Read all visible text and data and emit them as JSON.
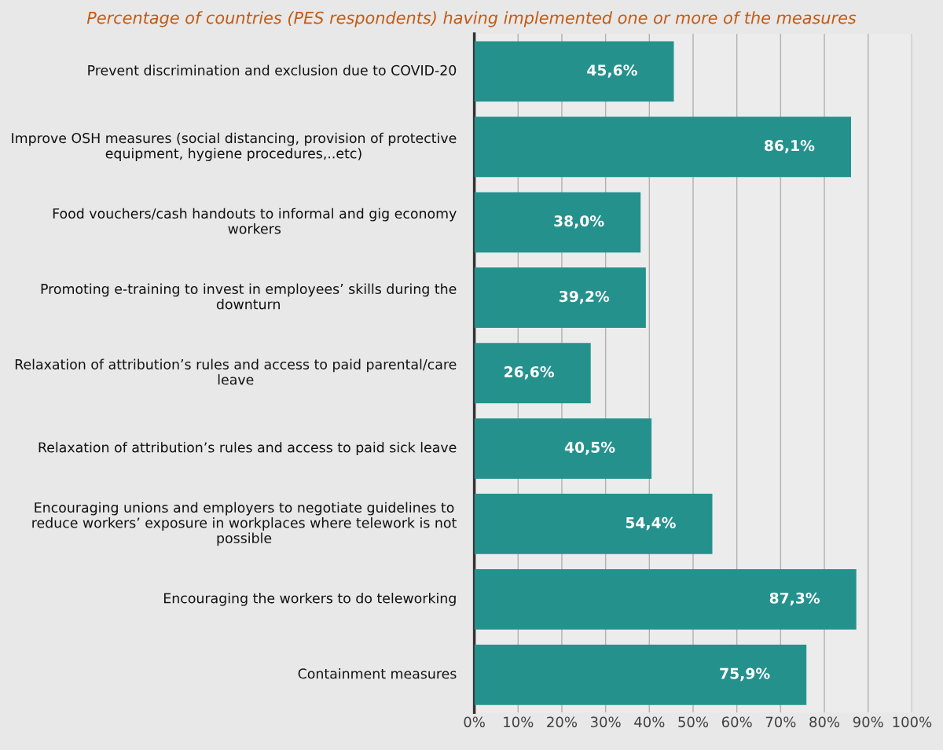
{
  "chart_data": {
    "type": "bar",
    "orientation": "horizontal",
    "title": "Percentage of countries (PES respondents) having implemented one or more of the measures",
    "categories": [
      "Prevent discrimination and exclusion due to COVID-20",
      "Improve OSH measures (social distancing, provision of protective equipment, hygiene procedures,..etc)",
      "Food vouchers/cash handouts to informal and gig economy workers",
      "Promoting e-training to invest in employees’ skills during the downturn",
      "Relaxation of attribution’s rules and access to paid parental/care leave",
      "Relaxation of attribution’s rules and access to paid sick leave",
      "Encouraging unions and employers to negotiate guidelines to reduce workers’ exposure in workplaces where telework is not possible",
      "Encouraging the workers to do teleworking",
      "Containment measures"
    ],
    "values": [
      45.6,
      86.1,
      38.0,
      39.2,
      26.6,
      40.5,
      54.4,
      87.3,
      75.9
    ],
    "value_labels": [
      "45,6%",
      "86,1%",
      "38,0%",
      "39,2%",
      "26,6%",
      "40,5%",
      "54,4%",
      "87,3%",
      "75,9%"
    ],
    "color": "#25918d",
    "xlim": [
      0,
      100
    ],
    "xticks": [
      {
        "value": 0,
        "label": "0%"
      },
      {
        "value": 10,
        "label": "10%"
      },
      {
        "value": 20,
        "label": "20%"
      },
      {
        "value": 30,
        "label": "30%"
      },
      {
        "value": 40,
        "label": "40%"
      },
      {
        "value": 50,
        "label": "50%"
      },
      {
        "value": 60,
        "label": "60%"
      },
      {
        "value": 70,
        "label": "70%"
      },
      {
        "value": 80,
        "label": "80%"
      },
      {
        "value": 90,
        "label": "90%"
      },
      {
        "value": 100,
        "label": "100%"
      }
    ],
    "grid": "x"
  }
}
